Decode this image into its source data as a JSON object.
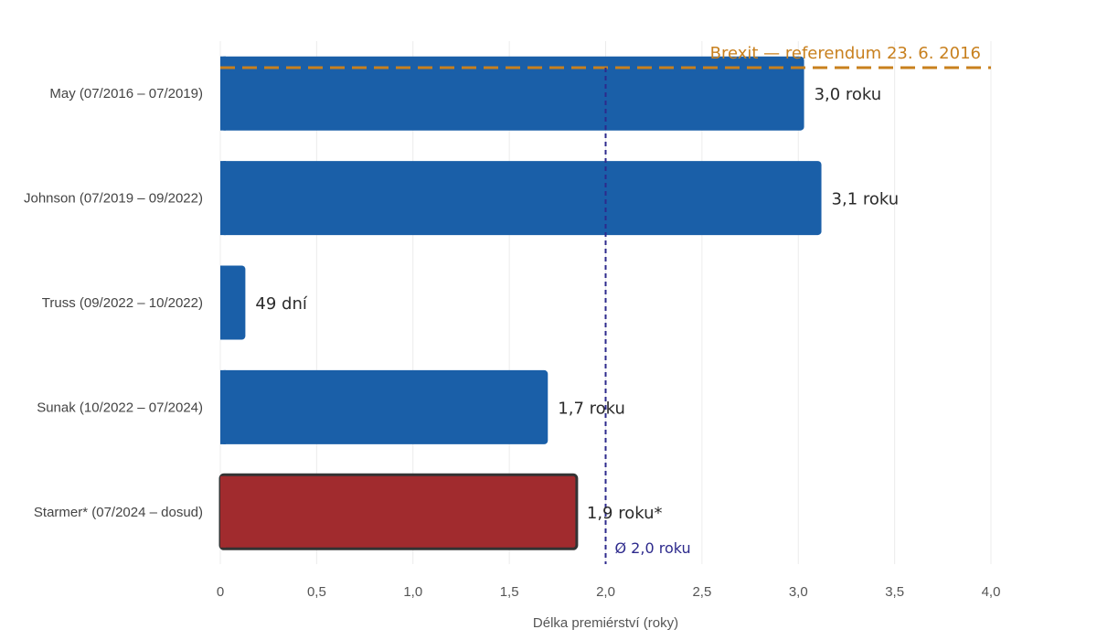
{
  "colors": {
    "bar": "#1a5fa8",
    "highlight_bar": "#a12b2e",
    "highlight_stroke": "#333333",
    "brexit": "#c8801e",
    "average": "#2d2a8c",
    "grid": "#ececec"
  },
  "chart_data": {
    "type": "bar",
    "orientation": "horizontal",
    "categories": [
      "May (07/2016 – 07/2019)",
      "Johnson (07/2019 – 09/2022)",
      "Truss (09/2022 – 10/2022)",
      "Sunak (10/2022 – 07/2024)",
      "Starmer* (07/2024 – dosud)"
    ],
    "values": [
      3.03,
      3.12,
      0.13,
      1.7,
      1.85
    ],
    "data_labels": [
      "3,0 roku",
      "3,1 roku",
      "49 dní",
      "1,7 roku",
      "1,9 roku*"
    ],
    "highlight_index": 4,
    "xlabel": "Délka premiérství (roky)",
    "ylabel": "",
    "xlim": [
      0,
      4
    ],
    "x_ticks": [
      0,
      0.5,
      1,
      1.5,
      2,
      2.5,
      3,
      3.5,
      4
    ],
    "x_tick_labels": [
      "0",
      "0,5",
      "1,0",
      "1,5",
      "2,0",
      "2,5",
      "3,0",
      "3,5",
      "4,0"
    ],
    "grid": true,
    "average_line": {
      "value": 2.0,
      "label": "Ø 2,0 roku"
    },
    "brexit_line": {
      "label": "Brexit — referendum 23. 6. 2016"
    }
  }
}
